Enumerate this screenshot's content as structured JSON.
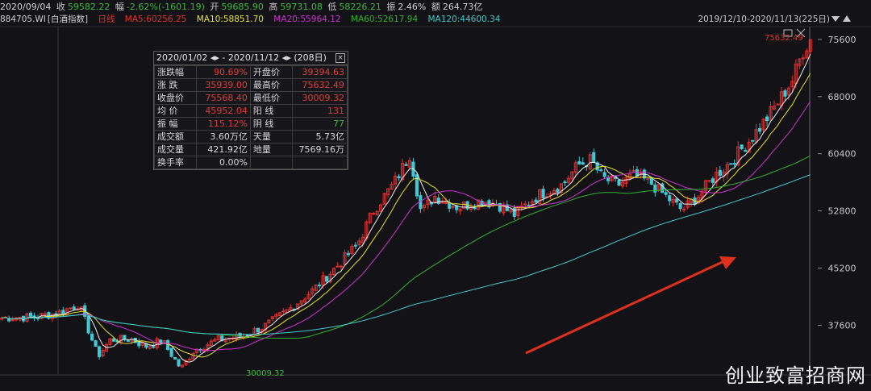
{
  "top_bar": {
    "date": "2020/09/04",
    "close_label": "收",
    "close_value": "59582.22",
    "change_label": "幅",
    "change_value": "-2.62%(-1601.19)",
    "open_label": "开",
    "open_value": "59685.90",
    "high_label": "高",
    "high_value": "59731.08",
    "low_label": "低",
    "low_value": "58226.21",
    "amp_label": "振",
    "amp_value": "2.46%",
    "amount_label": "额",
    "amount_value": "264.73亿"
  },
  "ma_bar": {
    "code": "884705.WI",
    "name": "[白酒指数]",
    "period": "日线",
    "ma5": "MA5:60256.25",
    "ma10": "MA10:58851.70",
    "ma20": "MA20:55964.12",
    "ma60": "MA60:52617.94",
    "ma120": "MA120:44600.34"
  },
  "date_range": "2019/12/10-2020/11/13(225日)",
  "stat_box": {
    "header": "2020/01/02 ◂▸ - 2020/11/12 ◂▸   (208日)",
    "close_icon": "close-icon",
    "rows": [
      {
        "k1": "涨跌幅",
        "v1": "90.69%",
        "c1": "#e03a3a",
        "k2": "开盘价",
        "v2": "39394.63",
        "c2": "#e03a3a"
      },
      {
        "k1": "涨  跌",
        "v1": "35939.00",
        "c1": "#e03a3a",
        "k2": "最高价",
        "v2": "75632.49",
        "c2": "#e03a3a"
      },
      {
        "k1": "收盘价",
        "v1": "75568.40",
        "c1": "#e03a3a",
        "k2": "最低价",
        "v2": "30009.32",
        "c2": "#e03a3a"
      },
      {
        "k1": "均  价",
        "v1": "45952.04",
        "c1": "#e03a3a",
        "k2": "阳  线",
        "v2": "131",
        "c2": "#e03a3a"
      },
      {
        "k1": "振  幅",
        "v1": "115.12%",
        "c1": "#e03a3a",
        "k2": "阴  线",
        "v2": "77",
        "c2": "#3db93d"
      },
      {
        "k1": "成交额",
        "v1": "3.60万亿",
        "c1": "#d6d6d6",
        "k2": "天量",
        "v2": "5.73亿",
        "c2": "#d6d6d6"
      },
      {
        "k1": "成交量",
        "v1": "421.92亿",
        "c1": "#d6d6d6",
        "k2": "地量",
        "v2": "7569.16万",
        "c2": "#d6d6d6"
      },
      {
        "k1": "换手率",
        "v1": "0.00%",
        "c1": "#d6d6d6",
        "k2": "",
        "v2": "",
        "c2": "#d6d6d6"
      }
    ]
  },
  "high_marker": "75632.49",
  "low_marker": "30009.32",
  "watermark": "创业致富招商网",
  "colors": {
    "up": "#e03030",
    "down": "#3fc8d8",
    "ma5": "#f0f0f0",
    "ma10": "#e8e020",
    "ma20": "#d030d0",
    "ma60": "#30b030",
    "ma120": "#40c8c8",
    "arrow": "#e0301c"
  },
  "chart_data": {
    "type": "candlestick",
    "y_ticks": [
      "75600",
      "68000",
      "60400",
      "52800",
      "45200",
      "37600"
    ],
    "y_tick_values": [
      75600,
      68000,
      60400,
      52800,
      45200,
      37600
    ],
    "ylim": [
      31000,
      77300
    ],
    "x_range": [
      "2019/12/10",
      "2020/11/13"
    ],
    "n_candles": 225,
    "path_keypoints": [
      [
        0,
        38600
      ],
      [
        20,
        38700
      ],
      [
        35,
        39200
      ],
      [
        48,
        40400
      ],
      [
        55,
        36500
      ],
      [
        60,
        33500
      ],
      [
        68,
        35700
      ],
      [
        80,
        35800
      ],
      [
        90,
        34800
      ],
      [
        100,
        35600
      ],
      [
        112,
        31800
      ],
      [
        120,
        34300
      ],
      [
        135,
        35700
      ],
      [
        150,
        36100
      ],
      [
        165,
        37600
      ],
      [
        180,
        39800
      ],
      [
        195,
        42400
      ],
      [
        210,
        45600
      ],
      [
        222,
        48300
      ],
      [
        232,
        52800
      ],
      [
        245,
        56500
      ],
      [
        255,
        60400
      ],
      [
        262,
        52500
      ],
      [
        270,
        54800
      ],
      [
        285,
        53300
      ],
      [
        300,
        54200
      ],
      [
        310,
        53700
      ],
      [
        320,
        52300
      ],
      [
        335,
        54900
      ],
      [
        350,
        56300
      ],
      [
        360,
        58900
      ],
      [
        368,
        59600
      ],
      [
        375,
        57200
      ],
      [
        385,
        56300
      ],
      [
        395,
        57500
      ],
      [
        405,
        56600
      ],
      [
        415,
        54700
      ],
      [
        425,
        52900
      ],
      [
        435,
        54800
      ],
      [
        445,
        57400
      ],
      [
        455,
        59300
      ],
      [
        465,
        61700
      ],
      [
        475,
        64300
      ],
      [
        485,
        67300
      ],
      [
        494,
        70300
      ],
      [
        500,
        73900
      ],
      [
        505,
        75600
      ]
    ],
    "trend_arrow": {
      "from_x_candle": 0,
      "note": "up"
    }
  }
}
